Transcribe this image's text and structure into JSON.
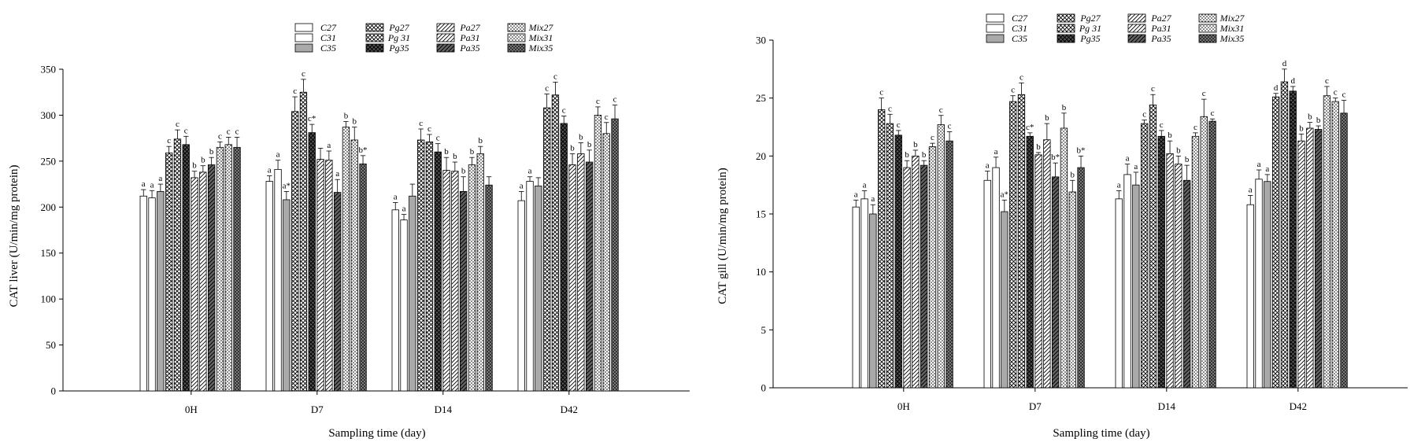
{
  "series_legend": [
    "C27",
    "C31",
    "C35",
    "Pg27",
    "Pg 31",
    "Pg35",
    "Pa27",
    "Pa31",
    "Pa35",
    "Mix27",
    "Mix31",
    "Mix35"
  ],
  "series_fills": [
    "white",
    "white",
    "gray",
    "cross",
    "cross",
    "crossdark",
    "diag",
    "diag",
    "diagdark",
    "dots",
    "dots",
    "dotsdark"
  ],
  "chart_data": [
    {
      "type": "bar",
      "categories": [
        "0H",
        "D7",
        "D14",
        "D42"
      ],
      "xlabel": "Sampling time (day)",
      "ylabel": "CAT liver (U/min/mg protein)",
      "ylim": [
        0,
        350
      ],
      "yticks": [
        "0",
        "50",
        "100",
        "150",
        "200",
        "250",
        "300",
        "350"
      ],
      "series": [
        {
          "name": "C27",
          "values": [
            212,
            228,
            197,
            207
          ]
        },
        {
          "name": "C31",
          "values": [
            210,
            241,
            186,
            228
          ]
        },
        {
          "name": "C35",
          "values": [
            217,
            208,
            212,
            223
          ]
        },
        {
          "name": "Pg27",
          "values": [
            259,
            304,
            273,
            308
          ]
        },
        {
          "name": "Pg 31",
          "values": [
            274,
            325,
            271,
            322
          ]
        },
        {
          "name": "Pg35",
          "values": [
            268,
            281,
            260,
            291
          ]
        },
        {
          "name": "Pa27",
          "values": [
            232,
            252,
            240,
            246
          ]
        },
        {
          "name": "Pa31",
          "values": [
            238,
            251,
            239,
            258
          ]
        },
        {
          "name": "Pa35",
          "values": [
            246,
            216,
            217,
            249
          ]
        },
        {
          "name": "Mix27",
          "values": [
            265,
            287,
            246,
            300
          ]
        },
        {
          "name": "Mix31",
          "values": [
            268,
            273,
            258,
            280
          ]
        },
        {
          "name": "Mix35",
          "values": [
            265,
            247,
            224,
            296
          ]
        }
      ],
      "errors": [
        [
          7,
          6,
          8,
          10
        ],
        [
          8,
          10,
          6,
          5
        ],
        [
          8,
          9,
          13,
          9
        ],
        [
          7,
          16,
          12,
          15
        ],
        [
          10,
          14,
          8,
          14
        ],
        [
          9,
          9,
          9,
          8
        ],
        [
          7,
          12,
          14,
          12
        ],
        [
          7,
          10,
          10,
          12
        ],
        [
          8,
          14,
          16,
          13
        ],
        [
          6,
          6,
          8,
          9
        ],
        [
          8,
          14,
          8,
          12
        ],
        [
          11,
          9,
          9,
          15
        ]
      ],
      "labels": [
        [
          "a",
          "a",
          "a",
          "a"
        ],
        [
          "a",
          "a",
          "a",
          "a"
        ],
        [
          "a",
          "a*",
          "",
          ""
        ],
        [
          "c",
          "c",
          "c",
          "c"
        ],
        [
          "c",
          "c",
          "c",
          "c"
        ],
        [
          "c",
          "c*",
          "c",
          "c"
        ],
        [
          "b",
          "",
          "b",
          "b"
        ],
        [
          "b",
          "a",
          "b",
          "b"
        ],
        [
          "b",
          "a",
          "b",
          "b"
        ],
        [
          "c",
          "b",
          "b",
          "c"
        ],
        [
          "c",
          "b",
          "b",
          "c"
        ],
        [
          "c",
          "b*",
          "",
          "c"
        ]
      ]
    },
    {
      "type": "bar",
      "categories": [
        "0H",
        "D7",
        "D14",
        "D42"
      ],
      "xlabel": "Sampling time (day)",
      "ylabel": "CAT gill (U/min/mg protein)",
      "ylim": [
        0,
        30
      ],
      "yticks": [
        "0",
        "5",
        "10",
        "15",
        "20",
        "25",
        "30"
      ],
      "series": [
        {
          "name": "C27",
          "values": [
            15.6,
            17.9,
            16.3,
            15.8
          ]
        },
        {
          "name": "C31",
          "values": [
            16.3,
            19.0,
            18.4,
            18.0
          ]
        },
        {
          "name": "C35",
          "values": [
            15.0,
            15.2,
            17.5,
            17.8
          ]
        },
        {
          "name": "Pg27",
          "values": [
            24.0,
            24.7,
            22.8,
            25.1
          ]
        },
        {
          "name": "Pg 31",
          "values": [
            22.8,
            25.3,
            24.4,
            26.4
          ]
        },
        {
          "name": "Pg35",
          "values": [
            21.8,
            21.7,
            21.7,
            25.6
          ]
        },
        {
          "name": "Pa27",
          "values": [
            19.0,
            20.1,
            20.2,
            21.3
          ]
        },
        {
          "name": "Pa31",
          "values": [
            20.0,
            21.4,
            19.3,
            22.4
          ]
        },
        {
          "name": "Pa35",
          "values": [
            19.2,
            18.2,
            17.9,
            22.3
          ]
        },
        {
          "name": "Mix27",
          "values": [
            20.8,
            22.4,
            21.7,
            25.2
          ]
        },
        {
          "name": "Mix31",
          "values": [
            22.7,
            16.9,
            23.4,
            24.7
          ]
        },
        {
          "name": "Mix35",
          "values": [
            21.3,
            19.0,
            23.0,
            23.7
          ]
        }
      ],
      "errors": [
        [
          0.6,
          0.8,
          0.7,
          0.8
        ],
        [
          0.7,
          0.9,
          0.9,
          0.8
        ],
        [
          0.8,
          1.0,
          1.1,
          0.6
        ],
        [
          1.0,
          0.5,
          0.3,
          0.3
        ],
        [
          0.8,
          1.0,
          0.9,
          1.1
        ],
        [
          0.4,
          0.3,
          0.5,
          0.4
        ],
        [
          0.6,
          0.2,
          1.1,
          0.6
        ],
        [
          0.5,
          1.4,
          0.7,
          0.5
        ],
        [
          0.4,
          1.2,
          1.3,
          0.3
        ],
        [
          0.3,
          1.3,
          0.3,
          0.8
        ],
        [
          0.8,
          1.0,
          1.5,
          0.3
        ],
        [
          0.8,
          1.0,
          0.2,
          1.1
        ]
      ],
      "labels": [
        [
          "a",
          "a",
          "a",
          "a"
        ],
        [
          "a",
          "a",
          "a",
          "a"
        ],
        [
          "a",
          "a*",
          "a",
          "a"
        ],
        [
          "c",
          "c",
          "c",
          "d"
        ],
        [
          "c",
          "c",
          "c",
          "d"
        ],
        [
          "c",
          "c*",
          "c",
          "d"
        ],
        [
          "b",
          "b",
          "b",
          "b"
        ],
        [
          "b",
          "b",
          "b",
          "b"
        ],
        [
          "b",
          "b*",
          "b",
          "b"
        ],
        [
          "c",
          "b",
          "c",
          "c"
        ],
        [
          "c",
          "b",
          "c",
          "c"
        ],
        [
          "c",
          "b*",
          "c",
          "c"
        ]
      ]
    }
  ]
}
